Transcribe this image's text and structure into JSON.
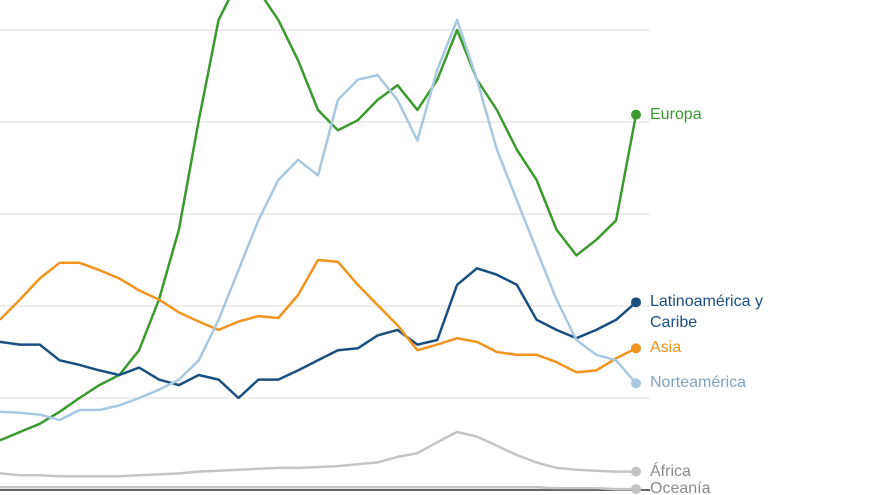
{
  "chart_data": {
    "type": "line",
    "x": [
      0,
      1,
      2,
      3,
      4,
      5,
      6,
      7,
      8,
      9,
      10,
      11,
      12,
      13,
      14,
      15,
      16,
      17,
      18,
      19,
      20,
      21,
      22,
      23,
      24,
      25,
      26,
      27,
      28,
      29,
      30,
      31,
      32
    ],
    "xlim": [
      0,
      32
    ],
    "ylim": [
      0,
      5.3
    ],
    "yticks": [
      0,
      1,
      2,
      3,
      4,
      5
    ],
    "grid": true,
    "series": [
      {
        "name": "Europa",
        "color": "#3a9a2e",
        "values": [
          0.54,
          0.63,
          0.72,
          0.85,
          1.0,
          1.14,
          1.25,
          1.52,
          2.07,
          2.83,
          4.02,
          5.11,
          5.54,
          5.43,
          5.11,
          4.67,
          4.13,
          3.91,
          4.02,
          4.24,
          4.4,
          4.13,
          4.46,
          5.0,
          4.46,
          4.13,
          3.7,
          3.37,
          2.83,
          2.55,
          2.72,
          2.93,
          4.08
        ]
      },
      {
        "name": "Latinoamérica y Caribe",
        "color": "#1a4f80",
        "values": [
          1.61,
          1.58,
          1.58,
          1.41,
          1.36,
          1.3,
          1.25,
          1.33,
          1.2,
          1.14,
          1.25,
          1.2,
          1.0,
          1.2,
          1.2,
          1.3,
          1.41,
          1.52,
          1.54,
          1.68,
          1.74,
          1.58,
          1.63,
          2.23,
          2.41,
          2.34,
          2.23,
          1.85,
          1.74,
          1.65,
          1.74,
          1.85,
          2.04
        ]
      },
      {
        "name": "Asia",
        "color": "#f0941e",
        "values": [
          1.85,
          2.07,
          2.3,
          2.47,
          2.47,
          2.39,
          2.3,
          2.17,
          2.07,
          1.93,
          1.83,
          1.74,
          1.83,
          1.89,
          1.87,
          2.12,
          2.5,
          2.48,
          2.23,
          2.01,
          1.79,
          1.52,
          1.58,
          1.65,
          1.61,
          1.5,
          1.47,
          1.47,
          1.39,
          1.28,
          1.3,
          1.43,
          1.54
        ]
      },
      {
        "name": "Norteamérica",
        "color": "#a9c8df",
        "values": [
          0.85,
          0.84,
          0.82,
          0.76,
          0.87,
          0.87,
          0.92,
          1.0,
          1.09,
          1.2,
          1.41,
          1.85,
          2.39,
          2.93,
          3.37,
          3.59,
          3.42,
          4.24,
          4.46,
          4.51,
          4.24,
          3.8,
          4.57,
          5.11,
          4.46,
          3.7,
          3.15,
          2.61,
          2.07,
          1.63,
          1.47,
          1.41,
          1.16
        ]
      },
      {
        "name": "África",
        "color": "#c4c4c4",
        "values": [
          0.18,
          0.16,
          0.16,
          0.15,
          0.15,
          0.15,
          0.15,
          0.16,
          0.17,
          0.18,
          0.2,
          0.21,
          0.22,
          0.23,
          0.24,
          0.24,
          0.25,
          0.26,
          0.28,
          0.3,
          0.36,
          0.4,
          0.52,
          0.63,
          0.58,
          0.48,
          0.38,
          0.3,
          0.24,
          0.22,
          0.21,
          0.2,
          0.2
        ]
      },
      {
        "name": "Oceanía",
        "color": "#c4c4c4",
        "values": [
          0.03,
          0.03,
          0.03,
          0.03,
          0.03,
          0.03,
          0.03,
          0.03,
          0.03,
          0.03,
          0.03,
          0.03,
          0.03,
          0.03,
          0.03,
          0.03,
          0.03,
          0.03,
          0.03,
          0.03,
          0.03,
          0.03,
          0.03,
          0.03,
          0.03,
          0.03,
          0.03,
          0.03,
          0.02,
          0.02,
          0.02,
          0.01,
          0.01
        ]
      }
    ]
  }
}
